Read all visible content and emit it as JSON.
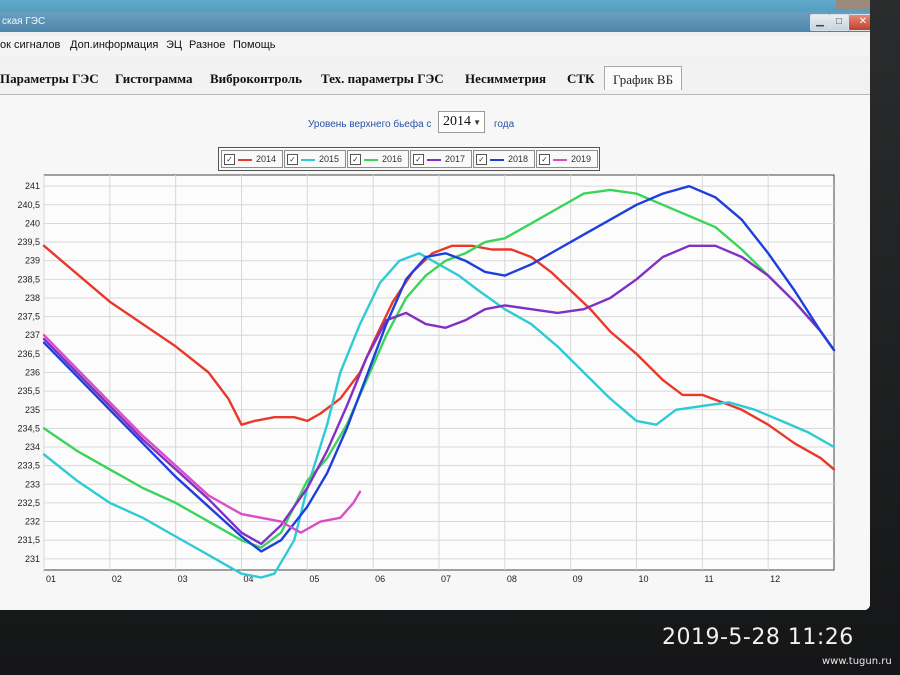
{
  "window": {
    "title": "ская ГЭС"
  },
  "menu": [
    "ок сигналов",
    "Доп.информация",
    "ЭЦ",
    "Разное",
    "Помощь"
  ],
  "tabs": [
    {
      "label": "Параметры ГЭС",
      "active": false
    },
    {
      "label": "Гистограмма",
      "active": false
    },
    {
      "label": "Виброконтроль",
      "active": false
    },
    {
      "label": "Тех. параметры ГЭС",
      "active": false
    },
    {
      "label": "Несимметрия",
      "active": false
    },
    {
      "label": "СТК",
      "active": false
    },
    {
      "label": "График ВБ",
      "active": true
    }
  ],
  "controls": {
    "level_label": "Уровень верхнего бьефа с",
    "year_selected": "2014",
    "year_suffix": "года"
  },
  "icons": {
    "dropdown": "chevron-down-icon",
    "check": "checkmark-icon"
  },
  "photo_overlay": {
    "timestamp": "2019-5-28 11:26",
    "watermark": "www.tugun.ru"
  },
  "chart_data": {
    "type": "line",
    "xlabel": "",
    "ylabel": "",
    "x_ticks": [
      "01",
      "02",
      "03",
      "04",
      "05",
      "06",
      "07",
      "08",
      "09",
      "10",
      "11",
      "12"
    ],
    "y_ticks": [
      "241",
      "240,5",
      "240",
      "239,5",
      "239",
      "238,5",
      "238",
      "237,5",
      "237",
      "236,5",
      "236",
      "235,5",
      "235",
      "234,5",
      "234",
      "233,5",
      "233",
      "232,5",
      "232",
      "231,5",
      "231"
    ],
    "xlim": [
      1,
      13
    ],
    "ylim": [
      230.7,
      241.3
    ],
    "grid": true,
    "legend_position": "top",
    "series": [
      {
        "name": "2014",
        "checked": true,
        "color": "#e8392a",
        "points": [
          [
            1,
            239.4
          ],
          [
            1.4,
            238.8
          ],
          [
            2,
            237.9
          ],
          [
            2.5,
            237.3
          ],
          [
            3,
            236.7
          ],
          [
            3.5,
            236
          ],
          [
            3.8,
            235.3
          ],
          [
            4,
            234.6
          ],
          [
            4.2,
            234.7
          ],
          [
            4.5,
            234.8
          ],
          [
            4.8,
            234.8
          ],
          [
            5,
            234.7
          ],
          [
            5.2,
            234.9
          ],
          [
            5.5,
            235.3
          ],
          [
            5.8,
            236
          ],
          [
            6,
            236.8
          ],
          [
            6.3,
            237.9
          ],
          [
            6.6,
            238.7
          ],
          [
            6.9,
            239.2
          ],
          [
            7.2,
            239.4
          ],
          [
            7.5,
            239.4
          ],
          [
            7.8,
            239.3
          ],
          [
            8.1,
            239.3
          ],
          [
            8.4,
            239.1
          ],
          [
            8.7,
            238.7
          ],
          [
            9,
            238.2
          ],
          [
            9.3,
            237.7
          ],
          [
            9.6,
            237.1
          ],
          [
            10,
            236.5
          ],
          [
            10.4,
            235.8
          ],
          [
            10.7,
            235.4
          ],
          [
            11,
            235.4
          ],
          [
            11.3,
            235.2
          ],
          [
            11.6,
            235
          ],
          [
            12,
            234.6
          ],
          [
            12.4,
            234.1
          ],
          [
            12.8,
            233.7
          ],
          [
            13,
            233.4
          ]
        ]
      },
      {
        "name": "2015",
        "checked": true,
        "color": "#2ecbd6",
        "points": [
          [
            1,
            233.8
          ],
          [
            1.5,
            233.1
          ],
          [
            2,
            232.5
          ],
          [
            2.5,
            232.1
          ],
          [
            3,
            231.6
          ],
          [
            3.5,
            231.1
          ],
          [
            3.8,
            230.8
          ],
          [
            4,
            230.6
          ],
          [
            4.3,
            230.5
          ],
          [
            4.5,
            230.6
          ],
          [
            4.8,
            231.5
          ],
          [
            5,
            232.9
          ],
          [
            5.3,
            234.6
          ],
          [
            5.5,
            236
          ],
          [
            5.8,
            237.3
          ],
          [
            6.1,
            238.4
          ],
          [
            6.4,
            239
          ],
          [
            6.7,
            239.2
          ],
          [
            7,
            238.9
          ],
          [
            7.3,
            238.6
          ],
          [
            7.6,
            238.2
          ],
          [
            8,
            237.7
          ],
          [
            8.4,
            237.3
          ],
          [
            8.8,
            236.7
          ],
          [
            9.2,
            236
          ],
          [
            9.6,
            235.3
          ],
          [
            10,
            234.7
          ],
          [
            10.3,
            234.6
          ],
          [
            10.6,
            235
          ],
          [
            11,
            235.1
          ],
          [
            11.4,
            235.2
          ],
          [
            11.8,
            235
          ],
          [
            12.2,
            234.7
          ],
          [
            12.6,
            234.4
          ],
          [
            13,
            234
          ]
        ]
      },
      {
        "name": "2016",
        "checked": true,
        "color": "#3bd45a",
        "points": [
          [
            1,
            234.5
          ],
          [
            1.5,
            233.9
          ],
          [
            2,
            233.4
          ],
          [
            2.5,
            232.9
          ],
          [
            3,
            232.5
          ],
          [
            3.5,
            232
          ],
          [
            4,
            231.5
          ],
          [
            4.3,
            231.3
          ],
          [
            4.6,
            231.7
          ],
          [
            5,
            233.1
          ],
          [
            5.3,
            233.7
          ],
          [
            5.6,
            234.6
          ],
          [
            5.9,
            235.8
          ],
          [
            6.2,
            237
          ],
          [
            6.5,
            238
          ],
          [
            6.8,
            238.6
          ],
          [
            7.1,
            239
          ],
          [
            7.4,
            239.2
          ],
          [
            7.7,
            239.5
          ],
          [
            8,
            239.6
          ],
          [
            8.4,
            240
          ],
          [
            8.8,
            240.4
          ],
          [
            9.2,
            240.8
          ],
          [
            9.6,
            240.9
          ],
          [
            10,
            240.8
          ],
          [
            10.4,
            240.5
          ],
          [
            10.8,
            240.2
          ],
          [
            11.2,
            239.9
          ],
          [
            11.6,
            239.3
          ],
          [
            12,
            238.6
          ],
          [
            12.4,
            237.9
          ],
          [
            12.8,
            237.1
          ],
          [
            13,
            236.6
          ]
        ]
      },
      {
        "name": "2017",
        "checked": true,
        "color": "#8230c4",
        "points": [
          [
            1,
            236.9
          ],
          [
            1.5,
            236
          ],
          [
            2,
            235.1
          ],
          [
            2.5,
            234.2
          ],
          [
            3,
            233.4
          ],
          [
            3.5,
            232.6
          ],
          [
            4,
            231.7
          ],
          [
            4.3,
            231.4
          ],
          [
            4.6,
            231.9
          ],
          [
            5,
            232.9
          ],
          [
            5.3,
            233.9
          ],
          [
            5.6,
            235.1
          ],
          [
            5.9,
            236.4
          ],
          [
            6.2,
            237.4
          ],
          [
            6.5,
            237.6
          ],
          [
            6.8,
            237.3
          ],
          [
            7.1,
            237.2
          ],
          [
            7.4,
            237.4
          ],
          [
            7.7,
            237.7
          ],
          [
            8,
            237.8
          ],
          [
            8.4,
            237.7
          ],
          [
            8.8,
            237.6
          ],
          [
            9.2,
            237.7
          ],
          [
            9.6,
            238
          ],
          [
            10,
            238.5
          ],
          [
            10.4,
            239.1
          ],
          [
            10.8,
            239.4
          ],
          [
            11.2,
            239.4
          ],
          [
            11.6,
            239.1
          ],
          [
            12,
            238.6
          ],
          [
            12.4,
            237.9
          ],
          [
            12.8,
            237.1
          ],
          [
            13,
            236.6
          ]
        ]
      },
      {
        "name": "2018",
        "checked": true,
        "color": "#1f3fdc",
        "points": [
          [
            1,
            236.8
          ],
          [
            1.5,
            235.9
          ],
          [
            2,
            235
          ],
          [
            2.5,
            234.1
          ],
          [
            3,
            233.2
          ],
          [
            3.5,
            232.4
          ],
          [
            4,
            231.6
          ],
          [
            4.3,
            231.2
          ],
          [
            4.6,
            231.5
          ],
          [
            5,
            232.4
          ],
          [
            5.3,
            233.3
          ],
          [
            5.6,
            234.5
          ],
          [
            5.9,
            235.9
          ],
          [
            6.2,
            237.3
          ],
          [
            6.5,
            238.5
          ],
          [
            6.8,
            239.1
          ],
          [
            7.1,
            239.2
          ],
          [
            7.4,
            239
          ],
          [
            7.7,
            238.7
          ],
          [
            8,
            238.6
          ],
          [
            8.4,
            238.9
          ],
          [
            8.8,
            239.3
          ],
          [
            9.2,
            239.7
          ],
          [
            9.6,
            240.1
          ],
          [
            10,
            240.5
          ],
          [
            10.4,
            240.8
          ],
          [
            10.8,
            241
          ],
          [
            11.2,
            240.7
          ],
          [
            11.6,
            240.1
          ],
          [
            12,
            239.2
          ],
          [
            12.4,
            238.2
          ],
          [
            12.8,
            237.1
          ],
          [
            13,
            236.6
          ]
        ]
      },
      {
        "name": "2019",
        "checked": true,
        "color": "#d64fc9",
        "points": [
          [
            1,
            237
          ],
          [
            1.5,
            236.1
          ],
          [
            2,
            235.2
          ],
          [
            2.5,
            234.3
          ],
          [
            3,
            233.5
          ],
          [
            3.5,
            232.7
          ],
          [
            4,
            232.2
          ],
          [
            4.3,
            232.1
          ],
          [
            4.6,
            232
          ],
          [
            4.9,
            231.7
          ],
          [
            5.2,
            232
          ],
          [
            5.5,
            232.1
          ],
          [
            5.7,
            232.5
          ],
          [
            5.8,
            232.8
          ]
        ]
      }
    ]
  }
}
